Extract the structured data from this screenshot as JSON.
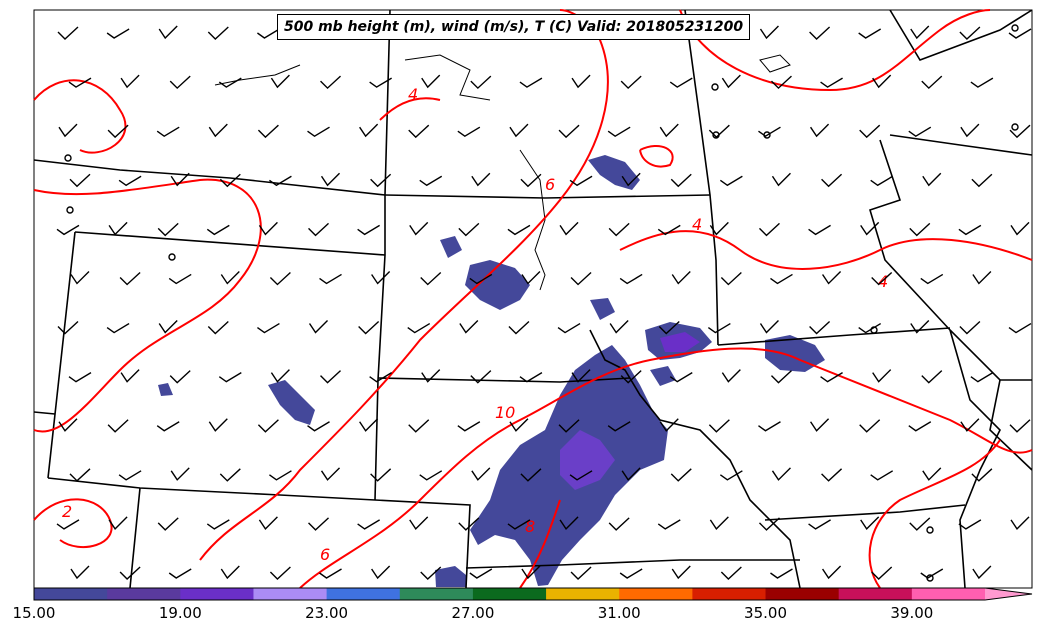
{
  "title": "500 mb height (m), wind (m/s), T (C) Valid: 201805231200",
  "colorbar": {
    "ticks": [
      "15.00",
      "19.00",
      "23.00",
      "27.00",
      "31.00",
      "35.00",
      "39.00"
    ],
    "bins": [
      "#44489a",
      "#5a3a9e",
      "#6a2fc8",
      "#ab8cf5",
      "#3f72e0",
      "#2e8a5a",
      "#0b6a1e",
      "#eab300",
      "#ff6a00",
      "#d81f00",
      "#9a0000",
      "#c8105a",
      "#ff5fb0"
    ],
    "extend_color": "#ff9ad0"
  },
  "contour_labels": [
    {
      "text": "4",
      "color": "#ff0000"
    },
    {
      "text": "6",
      "color": "#ff0000"
    },
    {
      "text": "4",
      "color": "#ff0000"
    },
    {
      "text": "4",
      "color": "#ff0000"
    },
    {
      "text": "10",
      "color": "#ff0000"
    },
    {
      "text": "8",
      "color": "#ff0000"
    },
    {
      "text": "2",
      "color": "#ff0000"
    },
    {
      "text": "6",
      "color": "#ff0000"
    }
  ],
  "colors": {
    "temperature_contour": "#ff0000",
    "wind_barb": "#000000",
    "state_border": "#000000",
    "shading_low": "#44489a",
    "shading_mid": "#6a3fc8"
  }
}
